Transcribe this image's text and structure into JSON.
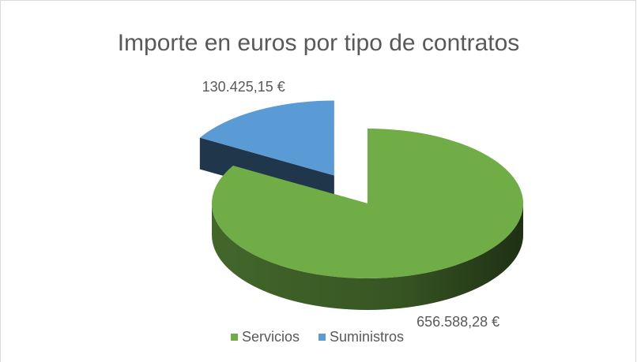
{
  "chart_data": {
    "type": "pie",
    "title": "Importe en euros por tipo de contratos",
    "categories": [
      "Servicios",
      "Suministros"
    ],
    "values": [
      656588.28,
      130425.15
    ],
    "value_labels": [
      "656.588,28 €",
      "130.425,15 €"
    ],
    "colors": [
      "#70ad47",
      "#5b9bd5"
    ],
    "legend": "bottom"
  }
}
